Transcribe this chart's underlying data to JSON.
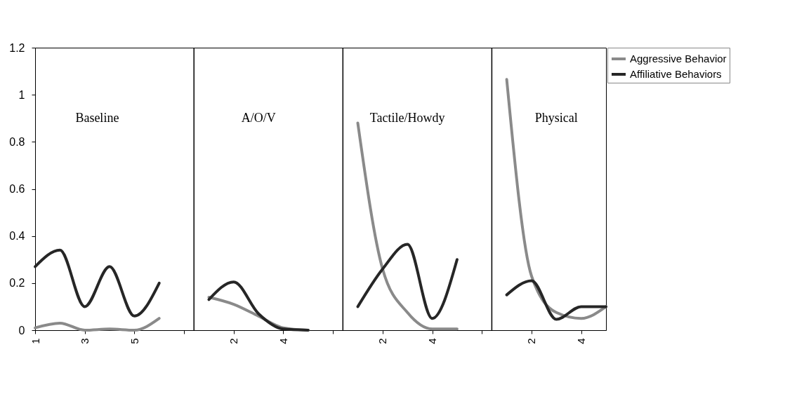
{
  "chart_data": {
    "type": "line",
    "categories": [
      "1",
      null,
      "3",
      null,
      "5",
      null,
      null,
      null,
      "2",
      null,
      "4",
      null,
      null,
      null,
      "2",
      null,
      "4",
      null,
      null,
      null,
      "2",
      null,
      "4",
      null
    ],
    "series": [
      {
        "name": "Aggressive Behavior",
        "color": "#8a8a8a",
        "values": [
          0.01,
          0.03,
          0.0,
          0.005,
          0.0,
          0.05,
          null,
          0.14,
          0.11,
          0.06,
          0.01,
          0.0,
          null,
          0.88,
          0.26,
          0.075,
          0.005,
          0.005,
          null,
          1.065,
          0.23,
          0.075,
          0.05,
          0.1
        ]
      },
      {
        "name": "Affiliative Behaviors",
        "color": "#262626",
        "values": [
          0.27,
          0.34,
          0.1,
          0.27,
          0.06,
          0.2,
          null,
          0.13,
          0.205,
          0.07,
          0.005,
          0.0,
          null,
          0.1,
          0.26,
          0.365,
          0.05,
          0.3,
          null,
          0.15,
          0.21,
          0.046,
          0.1,
          0.1
        ]
      }
    ],
    "ylim": [
      0,
      1.2
    ],
    "yticks": [
      0,
      0.2,
      0.4,
      0.6,
      0.8,
      1,
      1.2
    ],
    "annotations": [
      "Baseline",
      "A/O/V",
      "Tactile/Howdy",
      "Physical"
    ],
    "legend": "top right",
    "marker": "none",
    "line_style": "solid"
  }
}
